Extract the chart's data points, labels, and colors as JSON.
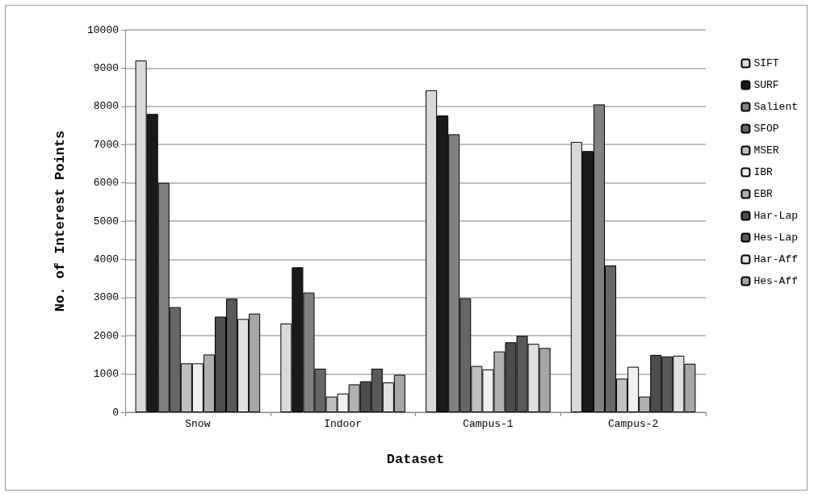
{
  "chart_data": {
    "type": "bar",
    "xlabel": "Dataset",
    "ylabel": "No. of Interest Points",
    "categories": [
      "Snow",
      "Indoor",
      "Campus-1",
      "Campus-2"
    ],
    "series": [
      {
        "name": "SIFT",
        "color": "#d9d9d9",
        "values": [
          9200,
          2320,
          8420,
          7070
        ]
      },
      {
        "name": "SURF",
        "color": "#1a1a1a",
        "values": [
          7800,
          3790,
          7760,
          6830
        ]
      },
      {
        "name": "Salient",
        "color": "#808080",
        "values": [
          6000,
          3130,
          7270,
          8050
        ]
      },
      {
        "name": "SFOP",
        "color": "#666666",
        "values": [
          2750,
          1140,
          2980,
          3840
        ]
      },
      {
        "name": "MSER",
        "color": "#bfbfbf",
        "values": [
          1280,
          410,
          1210,
          880
        ]
      },
      {
        "name": "IBR",
        "color": "#f0f0f0",
        "values": [
          1280,
          490,
          1120,
          1190
        ]
      },
      {
        "name": "EBR",
        "color": "#b0b0b0",
        "values": [
          1510,
          730,
          1590,
          410
        ]
      },
      {
        "name": "Har-Lap",
        "color": "#4d4d4d",
        "values": [
          2500,
          810,
          1830,
          1500
        ]
      },
      {
        "name": "Hes-Lap",
        "color": "#595959",
        "values": [
          2970,
          1140,
          2000,
          1460
        ]
      },
      {
        "name": "Har-Aff",
        "color": "#e0e0e0",
        "values": [
          2440,
          780,
          1790,
          1480
        ]
      },
      {
        "name": "Hes-Aff",
        "color": "#a6a6a6",
        "values": [
          2580,
          980,
          1680,
          1270
        ]
      }
    ],
    "ylim": [
      0,
      10000
    ],
    "yticks": [
      0,
      1000,
      2000,
      3000,
      4000,
      5000,
      6000,
      7000,
      8000,
      9000,
      10000
    ],
    "grid": "y",
    "legend": "right"
  }
}
